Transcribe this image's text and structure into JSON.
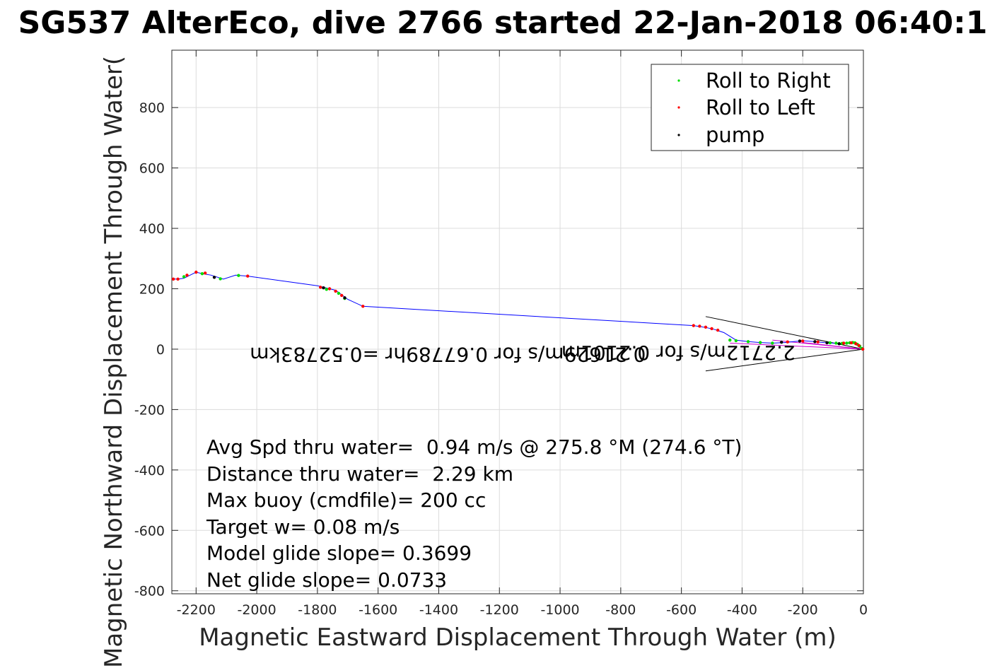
{
  "chart_data": {
    "type": "line",
    "title": "SG537 AlterEco, dive 2766 started 22-Jan-2018 06:40:1",
    "xlabel": "Magnetic Eastward Displacement Through Water (m)",
    "ylabel": "Magnetic Northward Displacement Through Water(",
    "xlim": [
      -2280,
      0
    ],
    "ylim": [
      -810,
      990
    ],
    "grid": true,
    "xticks": [
      -2200,
      -2000,
      -1800,
      -1600,
      -1400,
      -1200,
      -1000,
      -800,
      -600,
      -400,
      -200,
      0
    ],
    "yticks": [
      -800,
      -600,
      -400,
      -200,
      0,
      200,
      400,
      600,
      800
    ],
    "legend": {
      "position": "top-right",
      "entries": [
        {
          "label": "Roll to Right",
          "color": "#00dd00"
        },
        {
          "label": "Roll to Left",
          "color": "#ff0000"
        },
        {
          "label": "pump",
          "color": "#000000"
        }
      ]
    },
    "track": {
      "color": "#0000ff",
      "x": [
        0,
        -10,
        -20,
        -30,
        -45,
        -60,
        -80,
        -100,
        -130,
        -160,
        -200,
        -230,
        -260,
        -300,
        -340,
        -380,
        -420,
        -460,
        -490,
        -520,
        -560,
        -1650,
        -1700,
        -1720,
        -1740,
        -1760,
        -1780,
        -1800,
        -2030,
        -2070,
        -2110,
        -2150,
        -2180,
        -2200,
        -2220,
        -2240,
        -2260,
        -2280
      ],
      "y": [
        0,
        8,
        15,
        20,
        22,
        20,
        18,
        20,
        22,
        25,
        28,
        25,
        22,
        20,
        22,
        25,
        30,
        55,
        65,
        72,
        78,
        142,
        165,
        180,
        195,
        200,
        205,
        210,
        242,
        245,
        232,
        245,
        250,
        255,
        245,
        235,
        232,
        232
      ]
    },
    "roll_right_points": {
      "x": [
        -5,
        -12,
        -20,
        -28,
        -35,
        -45,
        -55,
        -70,
        -90,
        -110,
        -300,
        -340,
        -380,
        -420,
        -440,
        -1710,
        -1730,
        -1770,
        -2060,
        -2120,
        -2180,
        -2240
      ],
      "y": [
        2,
        10,
        16,
        21,
        22,
        21,
        20,
        19,
        20,
        21,
        20,
        22,
        25,
        28,
        30,
        168,
        185,
        198,
        244,
        233,
        250,
        240
      ]
    },
    "roll_left_points": {
      "x": [
        -2,
        -15,
        -25,
        -40,
        -65,
        -150,
        -200,
        -250,
        -480,
        -500,
        -520,
        -540,
        -560,
        -1650,
        -1720,
        -1740,
        -1760,
        -1790,
        -2030,
        -2170,
        -2200,
        -2230,
        -2260,
        -2275
      ],
      "y": [
        0,
        12,
        18,
        21,
        20,
        24,
        27,
        24,
        63,
        68,
        73,
        76,
        78,
        142,
        178,
        192,
        200,
        205,
        242,
        252,
        255,
        245,
        232,
        232
      ]
    },
    "pump_points": {
      "x": [
        -80,
        -120,
        -160,
        -210,
        -270,
        -1710,
        -1780,
        -2140
      ],
      "y": [
        18,
        21,
        25,
        27,
        23,
        170,
        203,
        238
      ]
    },
    "current_vectors": {
      "origin": [
        0,
        0
      ],
      "tips": [
        [
          -520,
          108
        ],
        [
          -520,
          -72
        ]
      ],
      "color": "#000000"
    },
    "flipped_annotations": [
      {
        "text": "0.21629m/s for 0.67789hr =0.52783km",
        "at": [
          -1370,
          5
        ]
      },
      {
        "text": "2.2712m/s for 0.2101m",
        "at": [
          -610,
          10
        ]
      }
    ],
    "annotations": [
      "Avg Spd thru water=  0.94 m/s @ 275.8 °M (274.6 °T)",
      "Distance thru water=  2.29 km",
      "Max buoy (cmdfile)= 200 cc",
      "Target w= 0.08 m/s",
      "Model glide slope= 0.3699",
      "Net glide slope= 0.0733"
    ]
  }
}
